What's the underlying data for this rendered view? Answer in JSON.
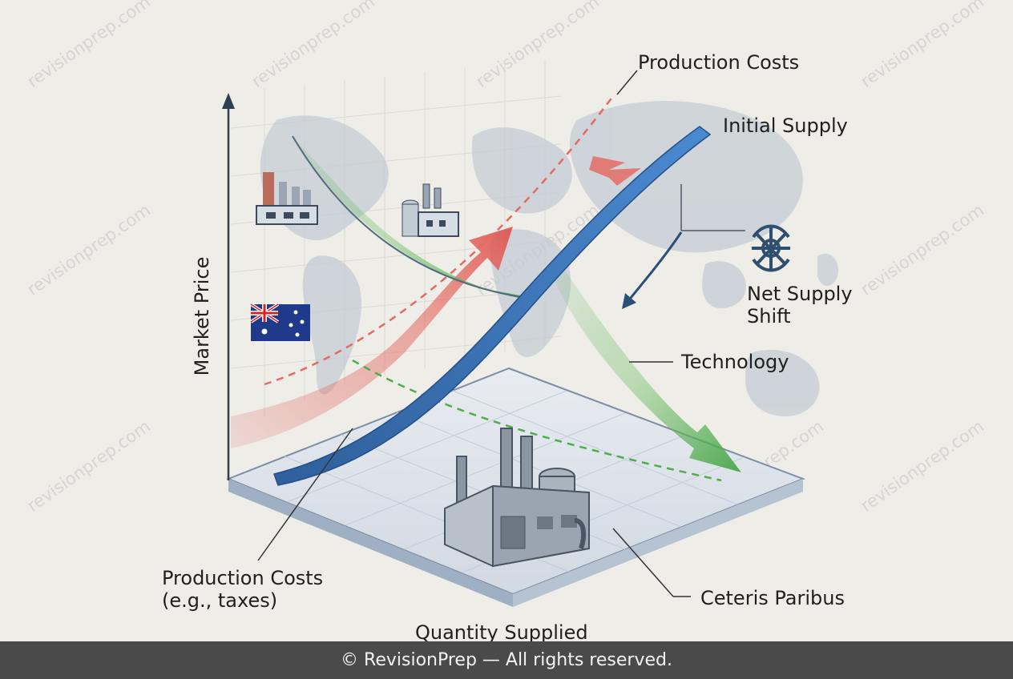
{
  "labels": {
    "production_costs_top": "Production Costs",
    "initial_supply": "Initial Supply",
    "net_supply_shift": "Net Supply Shift",
    "technology": "Technology",
    "production_costs_bottom": "Production Costs (e.g., taxes)",
    "ceteris_paribus": "Ceteris Paribus"
  },
  "axes": {
    "y_label": "Market Price",
    "x_label": "Quantity Supplied"
  },
  "watermark": "revisionprep.com",
  "footer": "© RevisionPrep — All rights reserved.",
  "colors": {
    "background": "#efede8",
    "supply_curve": "#3a74b6",
    "cost_arrow": "#e0605a",
    "technology_arrow": "#4fae4a",
    "platform": "#dfe4ea",
    "footer_bar": "#4a4a4a"
  },
  "icons": [
    "factory-icon",
    "australia-flag-icon",
    "network-hub-icon"
  ]
}
